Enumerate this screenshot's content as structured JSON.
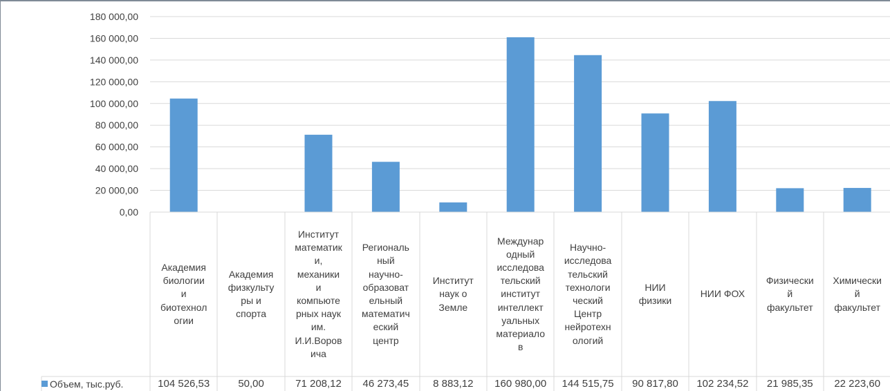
{
  "chart_data": {
    "type": "bar",
    "categories": [
      "Академия\nбиологии\nи\nбиотехнол\nогии",
      "Академия\nфизкульту\nры и\nспорта",
      "Институт\nматематик\nи,\nмеханики\nи\nкомпьюте\nрных наук\nим.\nИ.И.Воров\nича",
      "Региональ\nный\nнаучно-\nобразоват\nельный\nматематич\nеский\nцентр",
      "Институт\nнаук о\nЗемле",
      "Междунар\nодный\nисследова\nтельский\nинститут\nинтеллект\nуальных\nматериало\nв",
      "Научно-\nисследова\nтельский\nтехнологи\nческий\nЦентр\nнейротехн\nологий",
      "НИИ\nфизики",
      "НИИ ФОХ",
      "Физически\nй\nфакультет",
      "Химически\nй\nфакультет"
    ],
    "series": [
      {
        "name": "Объем, тыс.руб.",
        "values": [
          104526.53,
          50.0,
          71208.12,
          46273.45,
          8883.12,
          160980.0,
          144515.75,
          90817.8,
          102234.52,
          21985.35,
          22223.6
        ],
        "labels": [
          "104 526,53",
          "50,00",
          "71 208,12",
          "46 273,45",
          "8 883,12",
          "160 980,00",
          "144 515,75",
          "90 817,80",
          "102 234,52",
          "21 985,35",
          "22 223,60"
        ],
        "color": "#5b9bd5"
      }
    ],
    "ylim": [
      0,
      180000
    ],
    "yticks": [
      0,
      20000,
      40000,
      60000,
      80000,
      100000,
      120000,
      140000,
      160000,
      180000
    ],
    "ytick_labels": [
      "0,00",
      "20 000,00",
      "40 000,00",
      "60 000,00",
      "80 000,00",
      "100 000,00",
      "120 000,00",
      "140 000,00",
      "160 000,00",
      "180 000,00"
    ],
    "grid": true,
    "legend": "data-table-left",
    "colors": {
      "bar": "#5b9bd5",
      "grid": "#d9d9d9",
      "frame": "#7f8a96"
    }
  }
}
